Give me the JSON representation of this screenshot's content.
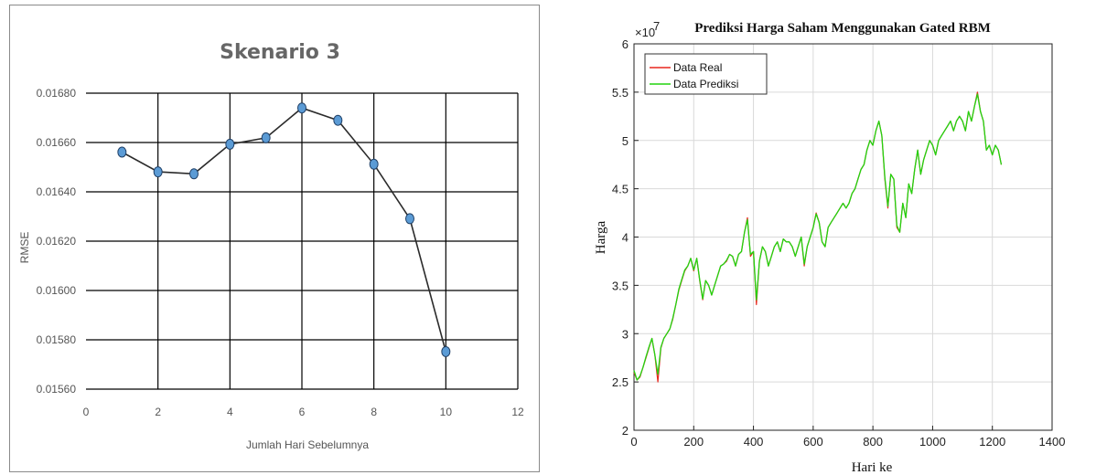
{
  "chart_data": [
    {
      "type": "line",
      "title": "Skenario 3",
      "xlabel": "Jumlah Hari Sebelumnya",
      "ylabel": "RMSE",
      "xlim": [
        0,
        12
      ],
      "ylim": [
        0.0156,
        0.0168
      ],
      "x_ticks": [
        "0",
        "2",
        "4",
        "6",
        "8",
        "10",
        "12"
      ],
      "y_ticks": [
        "0.01560",
        "0.01580",
        "0.01600",
        "0.01620",
        "0.01640",
        "0.01660",
        "0.01680"
      ],
      "grid": true,
      "marker_color": "#5b9bd5",
      "line_color": "#2b2b2b",
      "series": [
        {
          "x": [
            1,
            2,
            3,
            4,
            5,
            6,
            7,
            8,
            9,
            10
          ],
          "y": [
            0.016561,
            0.016481,
            0.016473,
            0.016593,
            0.016619,
            0.01674,
            0.01669,
            0.016512,
            0.016291,
            0.015752
          ]
        }
      ]
    },
    {
      "type": "line",
      "title": "Prediksi Harga Saham Menggunakan Gated RBM",
      "xlabel": "Hari ke",
      "ylabel": "Harga",
      "y_exponent_label": "×10",
      "y_exponent": "7",
      "xlim": [
        0,
        1400
      ],
      "ylim": [
        2,
        6
      ],
      "x_ticks": [
        "0",
        "200",
        "400",
        "600",
        "800",
        "1000",
        "1200",
        "1400"
      ],
      "y_ticks": [
        "2",
        "2.5",
        "3",
        "3.5",
        "4",
        "4.5",
        "5",
        "5.5",
        "6"
      ],
      "grid": true,
      "legend_position": "top-left",
      "series": [
        {
          "name": "Data Real",
          "color": "#e8271d",
          "x": [
            0,
            10,
            20,
            30,
            40,
            50,
            60,
            70,
            80,
            90,
            100,
            110,
            120,
            130,
            140,
            150,
            160,
            170,
            180,
            190,
            200,
            210,
            220,
            230,
            240,
            250,
            260,
            270,
            280,
            290,
            300,
            310,
            320,
            330,
            340,
            350,
            360,
            370,
            380,
            390,
            400,
            410,
            420,
            430,
            440,
            450,
            460,
            470,
            480,
            490,
            500,
            510,
            520,
            530,
            540,
            550,
            560,
            570,
            580,
            590,
            600,
            610,
            620,
            630,
            640,
            650,
            660,
            670,
            680,
            690,
            700,
            710,
            720,
            730,
            740,
            750,
            760,
            770,
            780,
            790,
            800,
            810,
            820,
            830,
            840,
            850,
            860,
            870,
            880,
            890,
            900,
            910,
            920,
            930,
            940,
            950,
            960,
            970,
            980,
            990,
            1000,
            1010,
            1020,
            1030,
            1040,
            1050,
            1060,
            1070,
            1080,
            1090,
            1100,
            1110,
            1120,
            1130,
            1140,
            1150,
            1160,
            1170,
            1180,
            1190,
            1200,
            1210,
            1220,
            1230
          ],
          "y": [
            2.6,
            2.52,
            2.55,
            2.65,
            2.75,
            2.85,
            2.95,
            2.78,
            2.5,
            2.85,
            2.95,
            3.0,
            3.05,
            3.15,
            3.3,
            3.45,
            3.55,
            3.65,
            3.7,
            3.78,
            3.65,
            3.78,
            3.55,
            3.35,
            3.55,
            3.5,
            3.4,
            3.5,
            3.6,
            3.7,
            3.72,
            3.75,
            3.82,
            3.8,
            3.7,
            3.82,
            3.85,
            4.05,
            4.2,
            3.8,
            3.85,
            3.3,
            3.75,
            3.9,
            3.85,
            3.7,
            3.8,
            3.9,
            3.95,
            3.85,
            3.98,
            3.95,
            3.95,
            3.9,
            3.8,
            3.9,
            4.0,
            3.7,
            3.9,
            4.0,
            4.1,
            4.25,
            4.15,
            3.95,
            3.9,
            4.1,
            4.15,
            4.2,
            4.25,
            4.3,
            4.35,
            4.3,
            4.35,
            4.45,
            4.5,
            4.6,
            4.7,
            4.75,
            4.9,
            5.0,
            4.95,
            5.1,
            5.2,
            5.05,
            4.6,
            4.3,
            4.65,
            4.6,
            4.1,
            4.05,
            4.35,
            4.2,
            4.55,
            4.45,
            4.7,
            4.9,
            4.65,
            4.8,
            4.9,
            5.0,
            4.95,
            4.85,
            5.0,
            5.05,
            5.1,
            5.15,
            5.2,
            5.1,
            5.2,
            5.25,
            5.2,
            5.1,
            5.3,
            5.2,
            5.35,
            5.5,
            5.3,
            5.2,
            4.9,
            4.95,
            4.85,
            4.95,
            4.9,
            4.75
          ]
        },
        {
          "name": "Data Prediksi",
          "color": "#22d40f",
          "x": [
            0,
            10,
            20,
            30,
            40,
            50,
            60,
            70,
            80,
            90,
            100,
            110,
            120,
            130,
            140,
            150,
            160,
            170,
            180,
            190,
            200,
            210,
            220,
            230,
            240,
            250,
            260,
            270,
            280,
            290,
            300,
            310,
            320,
            330,
            340,
            350,
            360,
            370,
            380,
            390,
            400,
            410,
            420,
            430,
            440,
            450,
            460,
            470,
            480,
            490,
            500,
            510,
            520,
            530,
            540,
            550,
            560,
            570,
            580,
            590,
            600,
            610,
            620,
            630,
            640,
            650,
            660,
            670,
            680,
            690,
            700,
            710,
            720,
            730,
            740,
            750,
            760,
            770,
            780,
            790,
            800,
            810,
            820,
            830,
            840,
            850,
            860,
            870,
            880,
            890,
            900,
            910,
            920,
            930,
            940,
            950,
            960,
            970,
            980,
            990,
            1000,
            1010,
            1020,
            1030,
            1040,
            1050,
            1060,
            1070,
            1080,
            1090,
            1100,
            1110,
            1120,
            1130,
            1140,
            1150,
            1160,
            1170,
            1180,
            1190,
            1200,
            1210,
            1220,
            1230
          ],
          "y": [
            2.62,
            2.52,
            2.56,
            2.65,
            2.76,
            2.86,
            2.95,
            2.78,
            2.58,
            2.86,
            2.95,
            3.0,
            3.05,
            3.16,
            3.3,
            3.46,
            3.56,
            3.66,
            3.7,
            3.78,
            3.66,
            3.78,
            3.56,
            3.36,
            3.55,
            3.5,
            3.4,
            3.5,
            3.6,
            3.7,
            3.72,
            3.76,
            3.82,
            3.8,
            3.7,
            3.82,
            3.85,
            4.05,
            4.18,
            3.82,
            3.85,
            3.35,
            3.75,
            3.9,
            3.85,
            3.7,
            3.8,
            3.9,
            3.95,
            3.85,
            3.98,
            3.95,
            3.95,
            3.9,
            3.8,
            3.9,
            4.0,
            3.72,
            3.9,
            4.0,
            4.1,
            4.24,
            4.15,
            3.95,
            3.9,
            4.1,
            4.15,
            4.2,
            4.25,
            4.3,
            4.35,
            4.3,
            4.35,
            4.45,
            4.5,
            4.6,
            4.7,
            4.75,
            4.9,
            5.0,
            4.95,
            5.1,
            5.2,
            5.05,
            4.62,
            4.32,
            4.65,
            4.6,
            4.12,
            4.05,
            4.35,
            4.2,
            4.55,
            4.45,
            4.7,
            4.9,
            4.65,
            4.8,
            4.9,
            5.0,
            4.95,
            4.85,
            5.0,
            5.05,
            5.1,
            5.15,
            5.2,
            5.1,
            5.2,
            5.25,
            5.2,
            5.1,
            5.3,
            5.2,
            5.35,
            5.48,
            5.3,
            5.2,
            4.9,
            4.95,
            4.85,
            4.95,
            4.9,
            4.75
          ]
        }
      ]
    }
  ]
}
